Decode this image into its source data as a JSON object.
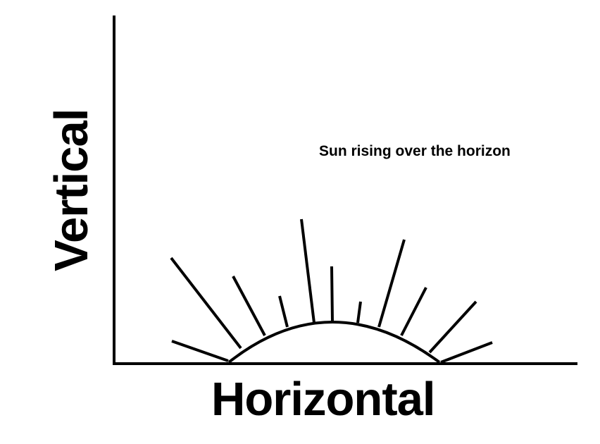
{
  "diagram": {
    "caption": "Sun rising over the horizon",
    "x_axis_label": "Horizontal",
    "y_axis_label": "Vertical",
    "line_color": "#000000",
    "background_color": "#ffffff"
  }
}
